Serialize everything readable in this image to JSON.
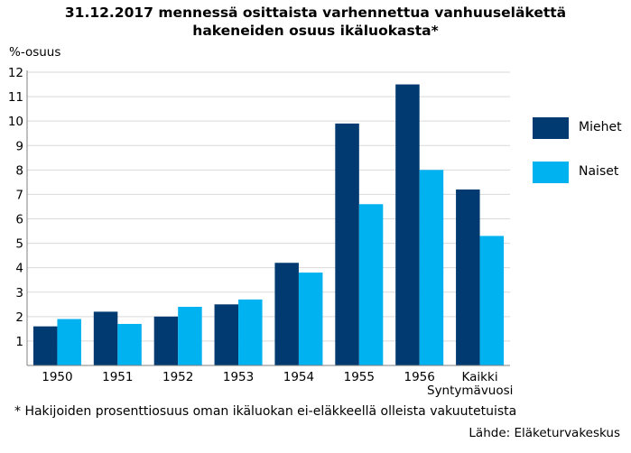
{
  "chart_data": {
    "type": "bar",
    "title_lines": [
      "31.12.2017 mennessä osittaista varhennettua vanhuuseläkettä",
      "hakeneiden osuus ikäluokasta*"
    ],
    "ylabel": "%-osuus",
    "xlabel": "Syntymävuosi",
    "ylim": [
      0,
      12
    ],
    "yticks": [
      1,
      2,
      3,
      4,
      5,
      6,
      7,
      8,
      9,
      10,
      11,
      12
    ],
    "grid": true,
    "legend_position": "right",
    "categories": [
      "1950",
      "1951",
      "1952",
      "1953",
      "1954",
      "1955",
      "1956",
      "Kaikki"
    ],
    "series": [
      {
        "name": "Miehet",
        "color": "#003a70",
        "values": [
          1.6,
          2.2,
          2.0,
          2.5,
          4.2,
          9.9,
          11.5,
          7.2
        ]
      },
      {
        "name": "Naiset",
        "color": "#00b2f0",
        "values": [
          1.9,
          1.7,
          2.4,
          2.7,
          3.8,
          6.6,
          8.0,
          5.3
        ]
      }
    ],
    "footnote": "* Hakijoiden prosenttiosuus oman ikäluokan ei-eläkkeellä olleista vakuutetuista",
    "source": "Lähde: Eläketurvakeskus"
  }
}
